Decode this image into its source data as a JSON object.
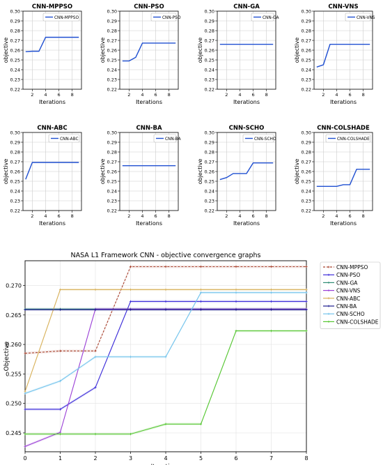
{
  "colors": {
    "small_line": "#1f4fd1",
    "grid": "#cccccc"
  },
  "chart_data": [
    {
      "type": "line",
      "title": "CNN-MPPSO",
      "xlabel": "Iterations",
      "ylabel": "objective",
      "x": [
        1,
        2,
        3,
        4,
        5,
        6,
        7,
        8,
        9
      ],
      "xticks": [
        2,
        4,
        6,
        8
      ],
      "yticks": [
        "0.22",
        "0.23",
        "0.24",
        "0.25",
        "0.26",
        "0.27",
        "0.28",
        "0.29",
        "0.30"
      ],
      "ylim": [
        0.22,
        0.3
      ],
      "xlim": [
        0.6,
        9.4
      ],
      "series": [
        {
          "name": "CNN-MPPSO",
          "values": [
            0.2585,
            0.2589,
            0.2589,
            0.2732,
            0.2732,
            0.2732,
            0.2732,
            0.2732,
            0.2732
          ]
        }
      ],
      "legend": "upper right",
      "grid": true
    },
    {
      "type": "line",
      "title": "CNN-PSO",
      "xlabel": "Iterations",
      "ylabel": "objective",
      "x": [
        1,
        2,
        3,
        4,
        5,
        6,
        7,
        8,
        9
      ],
      "xticks": [
        2,
        4,
        6,
        8
      ],
      "yticks": [
        "0.22",
        "0.23",
        "0.24",
        "0.25",
        "0.26",
        "0.27",
        "0.28",
        "0.29",
        "0.30"
      ],
      "ylim": [
        0.22,
        0.3
      ],
      "xlim": [
        0.6,
        9.4
      ],
      "series": [
        {
          "name": "CNN-PSO",
          "values": [
            0.249,
            0.249,
            0.2527,
            0.2673,
            0.2673,
            0.2673,
            0.2673,
            0.2673,
            0.2673
          ]
        }
      ],
      "legend": "upper right",
      "grid": true
    },
    {
      "type": "line",
      "title": "CNN-GA",
      "xlabel": "Iterations",
      "ylabel": "objective",
      "x": [
        1,
        2,
        3,
        4,
        5,
        6,
        7,
        8,
        9
      ],
      "xticks": [
        2,
        4,
        6,
        8
      ],
      "yticks": [
        "0.22",
        "0.23",
        "0.24",
        "0.25",
        "0.26",
        "0.27",
        "0.28",
        "0.29",
        "0.30"
      ],
      "ylim": [
        0.22,
        0.3
      ],
      "xlim": [
        0.6,
        9.4
      ],
      "series": [
        {
          "name": "CNN-GA",
          "values": [
            0.266,
            0.266,
            0.266,
            0.266,
            0.266,
            0.266,
            0.266,
            0.266,
            0.266
          ]
        }
      ],
      "legend": "upper right",
      "grid": true
    },
    {
      "type": "line",
      "title": "CNN-VNS",
      "xlabel": "Iterations",
      "ylabel": "objective",
      "x": [
        1,
        2,
        3,
        4,
        5,
        6,
        7,
        8,
        9
      ],
      "xticks": [
        2,
        4,
        6,
        8
      ],
      "yticks": [
        "0.22",
        "0.23",
        "0.24",
        "0.25",
        "0.26",
        "0.27",
        "0.28",
        "0.29",
        "0.30"
      ],
      "ylim": [
        0.22,
        0.3
      ],
      "xlim": [
        0.6,
        9.4
      ],
      "series": [
        {
          "name": "CNN-VNS",
          "values": [
            0.2427,
            0.2451,
            0.266,
            0.266,
            0.266,
            0.266,
            0.266,
            0.266,
            0.266
          ]
        }
      ],
      "legend": "upper right",
      "grid": true
    },
    {
      "type": "line",
      "title": "CNN-ABC",
      "xlabel": "Iterations",
      "ylabel": "objective",
      "x": [
        1,
        2,
        3,
        4,
        5,
        6,
        7,
        8,
        9
      ],
      "xticks": [
        2,
        4,
        6,
        8
      ],
      "yticks": [
        "0.22",
        "0.23",
        "0.24",
        "0.25",
        "0.26",
        "0.27",
        "0.28",
        "0.29",
        "0.30"
      ],
      "ylim": [
        0.22,
        0.3
      ],
      "xlim": [
        0.6,
        9.4
      ],
      "series": [
        {
          "name": "CNN-ABC",
          "values": [
            0.252,
            0.2693,
            0.2693,
            0.2693,
            0.2693,
            0.2693,
            0.2693,
            0.2693,
            0.2693
          ]
        }
      ],
      "legend": "upper right",
      "grid": true
    },
    {
      "type": "line",
      "title": "CNN-BA",
      "xlabel": "Iterations",
      "ylabel": "objective",
      "x": [
        1,
        2,
        3,
        4,
        5,
        6,
        7,
        8,
        9
      ],
      "xticks": [
        2,
        4,
        6,
        8
      ],
      "yticks": [
        "0.22",
        "0.23",
        "0.24",
        "0.25",
        "0.26",
        "0.27",
        "0.28",
        "0.29",
        "0.30"
      ],
      "ylim": [
        0.22,
        0.3
      ],
      "xlim": [
        0.6,
        9.4
      ],
      "series": [
        {
          "name": "CNN-BA",
          "values": [
            0.2659,
            0.2659,
            0.2659,
            0.2659,
            0.2659,
            0.2659,
            0.2659,
            0.2659,
            0.2659
          ]
        }
      ],
      "legend": "upper right",
      "grid": true
    },
    {
      "type": "line",
      "title": "CNN-SCHO",
      "xlabel": "Iterations",
      "ylabel": "objective",
      "x": [
        1,
        2,
        3,
        4,
        5,
        6,
        7,
        8,
        9
      ],
      "xticks": [
        2,
        4,
        6,
        8
      ],
      "yticks": [
        "0.22",
        "0.23",
        "0.24",
        "0.25",
        "0.26",
        "0.27",
        "0.28",
        "0.29",
        "0.30"
      ],
      "ylim": [
        0.22,
        0.3
      ],
      "xlim": [
        0.6,
        9.4
      ],
      "series": [
        {
          "name": "CNN-SCHO",
          "values": [
            0.2517,
            0.2538,
            0.2579,
            0.2579,
            0.2579,
            0.2688,
            0.2688,
            0.2688,
            0.2688
          ]
        }
      ],
      "legend": "upper right",
      "grid": true
    },
    {
      "type": "line",
      "title": "CNN-COLSHADE",
      "xlabel": "Iterations",
      "ylabel": "objective",
      "x": [
        1,
        2,
        3,
        4,
        5,
        6,
        7,
        8,
        9
      ],
      "xticks": [
        2,
        4,
        6,
        8
      ],
      "yticks": [
        "0.22",
        "0.23",
        "0.24",
        "0.25",
        "0.26",
        "0.27",
        "0.28",
        "0.29",
        "0.30"
      ],
      "ylim": [
        0.22,
        0.3
      ],
      "xlim": [
        0.6,
        9.4
      ],
      "series": [
        {
          "name": "CNN-COLSHADE",
          "values": [
            0.2448,
            0.2448,
            0.2448,
            0.2448,
            0.2465,
            0.2465,
            0.2623,
            0.2623,
            0.2623
          ]
        }
      ],
      "legend": "upper right",
      "grid": true
    },
    {
      "type": "line",
      "title": "NASA L1 Framework CNN -  objective convergence graphs",
      "xlabel": "Iterations",
      "ylabel": "Objective",
      "x": [
        0,
        1,
        2,
        3,
        4,
        5,
        6,
        7,
        8
      ],
      "xticks": [
        "0",
        "1",
        "2",
        "3",
        "4",
        "5",
        "6",
        "7",
        "8"
      ],
      "yticks": [
        "0.245",
        "0.250",
        "0.255",
        "0.260",
        "0.265",
        "0.270"
      ],
      "ylim": [
        0.2418,
        0.2742
      ],
      "xlim": [
        0,
        8
      ],
      "legend": "outside right",
      "grid": true,
      "series": [
        {
          "name": "CNN-MPPSO",
          "color": "#a8432f",
          "dashed": true,
          "values": [
            0.2585,
            0.2589,
            0.2589,
            0.2732,
            0.2732,
            0.2732,
            0.2732,
            0.2732,
            0.2732
          ]
        },
        {
          "name": "CNN-PSO",
          "color": "#3b2bd9",
          "values": [
            0.249,
            0.249,
            0.2527,
            0.2673,
            0.2673,
            0.2673,
            0.2673,
            0.2673,
            0.2673
          ]
        },
        {
          "name": "CNN-GA",
          "color": "#2e8b73",
          "values": [
            0.266,
            0.266,
            0.266,
            0.266,
            0.266,
            0.266,
            0.266,
            0.266,
            0.266
          ]
        },
        {
          "name": "CNN-VNS",
          "color": "#9a3fd6",
          "values": [
            0.2427,
            0.2451,
            0.266,
            0.266,
            0.266,
            0.266,
            0.266,
            0.266,
            0.266
          ]
        },
        {
          "name": "CNN-ABC",
          "color": "#d8b15a",
          "values": [
            0.252,
            0.2693,
            0.2693,
            0.2693,
            0.2693,
            0.2693,
            0.2693,
            0.2693,
            0.2693
          ]
        },
        {
          "name": "CNN-BA",
          "color": "#1a1a8c",
          "values": [
            0.2659,
            0.2659,
            0.2659,
            0.2659,
            0.2659,
            0.2659,
            0.2659,
            0.2659,
            0.2659
          ]
        },
        {
          "name": "CNN-SCHO",
          "color": "#74c4ec",
          "values": [
            0.2517,
            0.2538,
            0.2579,
            0.2579,
            0.2579,
            0.2688,
            0.2688,
            0.2688,
            0.2688
          ]
        },
        {
          "name": "CNN-COLSHADE",
          "color": "#55c631",
          "values": [
            0.2448,
            0.2448,
            0.2448,
            0.2448,
            0.2465,
            0.2465,
            0.2623,
            0.2623,
            0.2623
          ]
        }
      ]
    }
  ]
}
